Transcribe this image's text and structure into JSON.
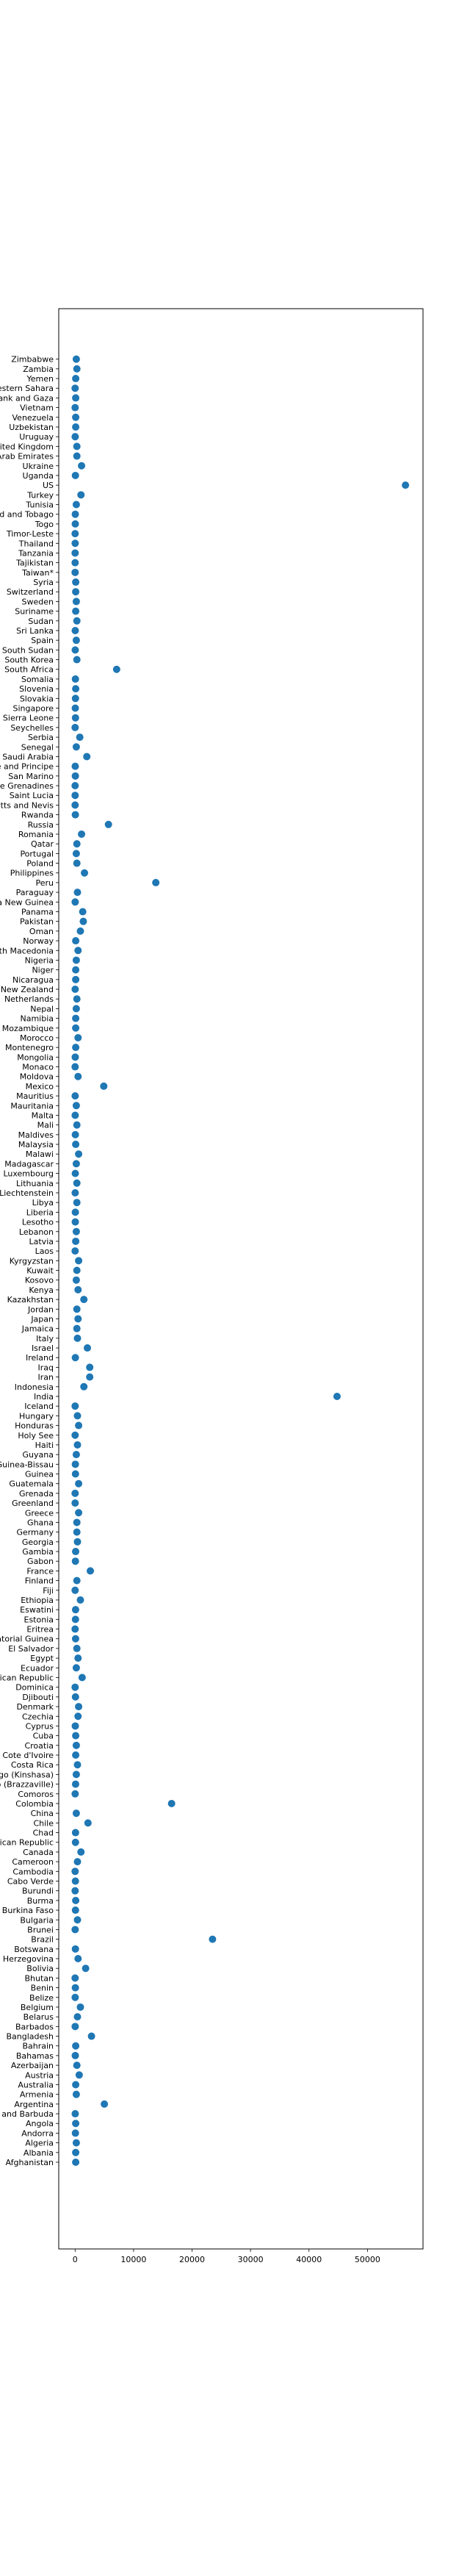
{
  "chart_data": {
    "type": "scatter",
    "title": "",
    "xlabel": "",
    "ylabel": "",
    "xlim": [
      -2800,
      59500
    ],
    "xticks": [
      0,
      10000,
      20000,
      30000,
      40000,
      50000
    ],
    "xtick_labels": [
      "0",
      "10000",
      "20000",
      "30000",
      "40000",
      "50000"
    ],
    "grid": false,
    "marker_color": "#1f77b4",
    "points": [
      {
        "label": "Afghanistan",
        "x": 100
      },
      {
        "label": "Albania",
        "x": 100
      },
      {
        "label": "Algeria",
        "x": 200
      },
      {
        "label": "Andorra",
        "x": 50
      },
      {
        "label": "Angola",
        "x": 100
      },
      {
        "label": "Antigua and Barbuda",
        "x": 20
      },
      {
        "label": "Argentina",
        "x": 5000
      },
      {
        "label": "Armenia",
        "x": 200
      },
      {
        "label": "Australia",
        "x": 100
      },
      {
        "label": "Austria",
        "x": 700
      },
      {
        "label": "Azerbaijan",
        "x": 300
      },
      {
        "label": "Bahamas",
        "x": 30
      },
      {
        "label": "Bahrain",
        "x": 100
      },
      {
        "label": "Bangladesh",
        "x": 2800
      },
      {
        "label": "Barbados",
        "x": 10
      },
      {
        "label": "Belarus",
        "x": 400
      },
      {
        "label": "Belgium",
        "x": 900
      },
      {
        "label": "Belize",
        "x": 10
      },
      {
        "label": "Benin",
        "x": 40
      },
      {
        "label": "Bhutan",
        "x": 0
      },
      {
        "label": "Bolivia",
        "x": 1800
      },
      {
        "label": "Bosnia and Herzegovina",
        "x": 500
      },
      {
        "label": "Botswana",
        "x": 50
      },
      {
        "label": "Brazil",
        "x": 23500
      },
      {
        "label": "Brunei",
        "x": 3
      },
      {
        "label": "Bulgaria",
        "x": 400
      },
      {
        "label": "Burkina Faso",
        "x": 60
      },
      {
        "label": "Burma",
        "x": 100
      },
      {
        "label": "Burundi",
        "x": 1
      },
      {
        "label": "Cabo Verde",
        "x": 50
      },
      {
        "label": "Cambodia",
        "x": 0
      },
      {
        "label": "Cameroon",
        "x": 400
      },
      {
        "label": "Canada",
        "x": 1000
      },
      {
        "label": "Central African Republic",
        "x": 60
      },
      {
        "label": "Chad",
        "x": 70
      },
      {
        "label": "Chile",
        "x": 2200
      },
      {
        "label": "China",
        "x": 200
      },
      {
        "label": "Colombia",
        "x": 16500
      },
      {
        "label": "Comoros",
        "x": 7
      },
      {
        "label": "Congo (Brazzaville)",
        "x": 80
      },
      {
        "label": "Congo (Kinshasa)",
        "x": 200
      },
      {
        "label": "Costa Rica",
        "x": 400
      },
      {
        "label": "Cote d'Ivoire",
        "x": 100
      },
      {
        "label": "Croatia",
        "x": 200
      },
      {
        "label": "Cuba",
        "x": 100
      },
      {
        "label": "Cyprus",
        "x": 30
      },
      {
        "label": "Czechia",
        "x": 500
      },
      {
        "label": "Denmark",
        "x": 600
      },
      {
        "label": "Djibouti",
        "x": 60
      },
      {
        "label": "Dominica",
        "x": 0
      },
      {
        "label": "Dominican Republic",
        "x": 1200
      },
      {
        "label": "Ecuador",
        "x": 200
      },
      {
        "label": "Egypt",
        "x": 500
      },
      {
        "label": "El Salvador",
        "x": 300
      },
      {
        "label": "Equatorial Guinea",
        "x": 80
      },
      {
        "label": "Eritrea",
        "x": 0
      },
      {
        "label": "Estonia",
        "x": 60
      },
      {
        "label": "Eswatini",
        "x": 80
      },
      {
        "label": "Ethiopia",
        "x": 900
      },
      {
        "label": "Fiji",
        "x": 2
      },
      {
        "label": "Finland",
        "x": 300
      },
      {
        "label": "France",
        "x": 2600
      },
      {
        "label": "Gabon",
        "x": 50
      },
      {
        "label": "Gambia",
        "x": 90
      },
      {
        "label": "Georgia",
        "x": 400
      },
      {
        "label": "Germany",
        "x": 300
      },
      {
        "label": "Ghana",
        "x": 300
      },
      {
        "label": "Greece",
        "x": 600
      },
      {
        "label": "Greenland",
        "x": 0
      },
      {
        "label": "Grenada",
        "x": 0
      },
      {
        "label": "Guatemala",
        "x": 600
      },
      {
        "label": "Guinea",
        "x": 60
      },
      {
        "label": "Guinea-Bissau",
        "x": 40
      },
      {
        "label": "Guyana",
        "x": 200
      },
      {
        "label": "Haiti",
        "x": 400
      },
      {
        "label": "Holy See",
        "x": 0
      },
      {
        "label": "Honduras",
        "x": 600
      },
      {
        "label": "Hungary",
        "x": 400
      },
      {
        "label": "Iceland",
        "x": 1
      },
      {
        "label": "India",
        "x": 44800
      },
      {
        "label": "Indonesia",
        "x": 1500
      },
      {
        "label": "Iran",
        "x": 2500
      },
      {
        "label": "Iraq",
        "x": 2500
      },
      {
        "label": "Ireland",
        "x": 40
      },
      {
        "label": "Israel",
        "x": 2100
      },
      {
        "label": "Italy",
        "x": 400
      },
      {
        "label": "Jamaica",
        "x": 300
      },
      {
        "label": "Japan",
        "x": 500
      },
      {
        "label": "Jordan",
        "x": 300
      },
      {
        "label": "Kazakhstan",
        "x": 1500
      },
      {
        "label": "Kenya",
        "x": 500
      },
      {
        "label": "Kosovo",
        "x": 200
      },
      {
        "label": "Kuwait",
        "x": 300
      },
      {
        "label": "Kyrgyzstan",
        "x": 600
      },
      {
        "label": "Laos",
        "x": 0
      },
      {
        "label": "Latvia",
        "x": 100
      },
      {
        "label": "Lebanon",
        "x": 200
      },
      {
        "label": "Lesotho",
        "x": 30
      },
      {
        "label": "Liberia",
        "x": 40
      },
      {
        "label": "Libya",
        "x": 300
      },
      {
        "label": "Liechtenstein",
        "x": 10
      },
      {
        "label": "Lithuania",
        "x": 300
      },
      {
        "label": "Luxembourg",
        "x": 30
      },
      {
        "label": "Madagascar",
        "x": 200
      },
      {
        "label": "Malawi",
        "x": 600
      },
      {
        "label": "Malaysia",
        "x": 100
      },
      {
        "label": "Maldives",
        "x": 40
      },
      {
        "label": "Mali",
        "x": 300
      },
      {
        "label": "Malta",
        "x": 10
      },
      {
        "label": "Mauritania",
        "x": 200
      },
      {
        "label": "Mauritius",
        "x": 10
      },
      {
        "label": "Mexico",
        "x": 4900
      },
      {
        "label": "Moldova",
        "x": 500
      },
      {
        "label": "Monaco",
        "x": 0
      },
      {
        "label": "Mongolia",
        "x": 20
      },
      {
        "label": "Montenegro",
        "x": 100
      },
      {
        "label": "Morocco",
        "x": 500
      },
      {
        "label": "Mozambique",
        "x": 100
      },
      {
        "label": "Namibia",
        "x": 100
      },
      {
        "label": "Nepal",
        "x": 200
      },
      {
        "label": "Netherlands",
        "x": 300
      },
      {
        "label": "New Zealand",
        "x": 10
      },
      {
        "label": "Nicaragua",
        "x": 100
      },
      {
        "label": "Niger",
        "x": 100
      },
      {
        "label": "Nigeria",
        "x": 200
      },
      {
        "label": "North Macedonia",
        "x": 500
      },
      {
        "label": "Norway",
        "x": 100
      },
      {
        "label": "Oman",
        "x": 900
      },
      {
        "label": "Pakistan",
        "x": 1400
      },
      {
        "label": "Panama",
        "x": 1300
      },
      {
        "label": "Papua New Guinea",
        "x": 10
      },
      {
        "label": "Paraguay",
        "x": 400
      },
      {
        "label": "Peru",
        "x": 13800
      },
      {
        "label": "Philippines",
        "x": 1600
      },
      {
        "label": "Poland",
        "x": 300
      },
      {
        "label": "Portugal",
        "x": 200
      },
      {
        "label": "Qatar",
        "x": 300
      },
      {
        "label": "Romania",
        "x": 1100
      },
      {
        "label": "Russia",
        "x": 5700
      },
      {
        "label": "Rwanda",
        "x": 40
      },
      {
        "label": "Saint Kitts and Nevis",
        "x": 0
      },
      {
        "label": "Saint Lucia",
        "x": 0
      },
      {
        "label": "Saint Vincent and the Grenadines",
        "x": 0
      },
      {
        "label": "San Marino",
        "x": 40
      },
      {
        "label": "Sao Tome and Principe",
        "x": 20
      },
      {
        "label": "Saudi Arabia",
        "x": 2000
      },
      {
        "label": "Senegal",
        "x": 200
      },
      {
        "label": "Serbia",
        "x": 800
      },
      {
        "label": "Seychelles",
        "x": 0
      },
      {
        "label": "Sierra Leone",
        "x": 60
      },
      {
        "label": "Singapore",
        "x": 30
      },
      {
        "label": "Slovakia",
        "x": 60
      },
      {
        "label": "Slovenia",
        "x": 100
      },
      {
        "label": "Somalia",
        "x": 50
      },
      {
        "label": "South Africa",
        "x": 7100
      },
      {
        "label": "South Korea",
        "x": 300
      },
      {
        "label": "South Sudan",
        "x": 20
      },
      {
        "label": "Spain",
        "x": 200
      },
      {
        "label": "Sri Lanka",
        "x": 20
      },
      {
        "label": "Sudan",
        "x": 300
      },
      {
        "label": "Suriname",
        "x": 100
      },
      {
        "label": "Sweden",
        "x": 200
      },
      {
        "label": "Switzerland",
        "x": 100
      },
      {
        "label": "Syria",
        "x": 100
      },
      {
        "label": "Taiwan*",
        "x": 0
      },
      {
        "label": "Tajikistan",
        "x": 0
      },
      {
        "label": "Tanzania",
        "x": 0
      },
      {
        "label": "Thailand",
        "x": 10
      },
      {
        "label": "Timor-Leste",
        "x": 0
      },
      {
        "label": "Togo",
        "x": 30
      },
      {
        "label": "Trinidad and Tobago",
        "x": 30
      },
      {
        "label": "Tunisia",
        "x": 200
      },
      {
        "label": "Turkey",
        "x": 1000
      },
      {
        "label": "US",
        "x": 56500
      },
      {
        "label": "Uganda",
        "x": 50
      },
      {
        "label": "Ukraine",
        "x": 1100
      },
      {
        "label": "United Arab Emirates",
        "x": 300
      },
      {
        "label": "United Kingdom",
        "x": 300
      },
      {
        "label": "Uruguay",
        "x": 10
      },
      {
        "label": "Uzbekistan",
        "x": 100
      },
      {
        "label": "Venezuela",
        "x": 100
      },
      {
        "label": "Vietnam",
        "x": 0
      },
      {
        "label": "West Bank and Gaza",
        "x": 100
      },
      {
        "label": "Western Sahara",
        "x": 0
      },
      {
        "label": "Yemen",
        "x": 100
      },
      {
        "label": "Zambia",
        "x": 300
      },
      {
        "label": "Zimbabwe",
        "x": 200
      }
    ]
  }
}
